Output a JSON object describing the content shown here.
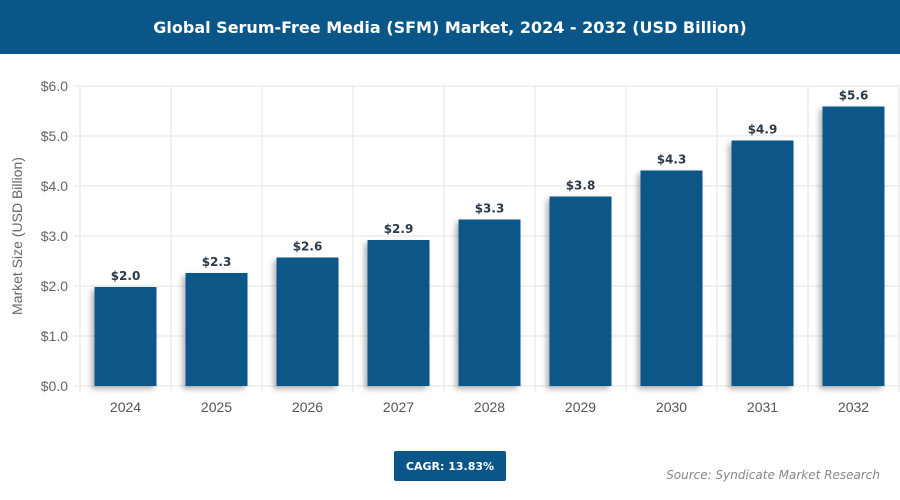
{
  "chart_data": {
    "type": "bar",
    "title": "Global Serum-Free Media (SFM) Market, 2024 - 2032 (USD Billion)",
    "xlabel": "",
    "ylabel": "Market Size (USD Billion)",
    "categories": [
      "2024",
      "2025",
      "2026",
      "2027",
      "2028",
      "2029",
      "2030",
      "2031",
      "2032"
    ],
    "values": [
      1.98,
      2.26,
      2.57,
      2.92,
      3.33,
      3.79,
      4.31,
      4.91,
      5.59
    ],
    "data_labels": [
      "$2.0",
      "$2.3",
      "$2.6",
      "$2.9",
      "$3.3",
      "$3.8",
      "$4.3",
      "$4.9",
      "$5.6"
    ],
    "ylim": [
      0,
      6
    ],
    "yticks": [
      "$0.0",
      "$1.0",
      "$2.0",
      "$3.0",
      "$4.0",
      "$5.0",
      "$6.0"
    ],
    "grid": true,
    "bar_color": "#0b5688"
  },
  "footer": {
    "cagr": "CAGR: 13.83%",
    "source": "Source: Syndicate Market Research"
  }
}
